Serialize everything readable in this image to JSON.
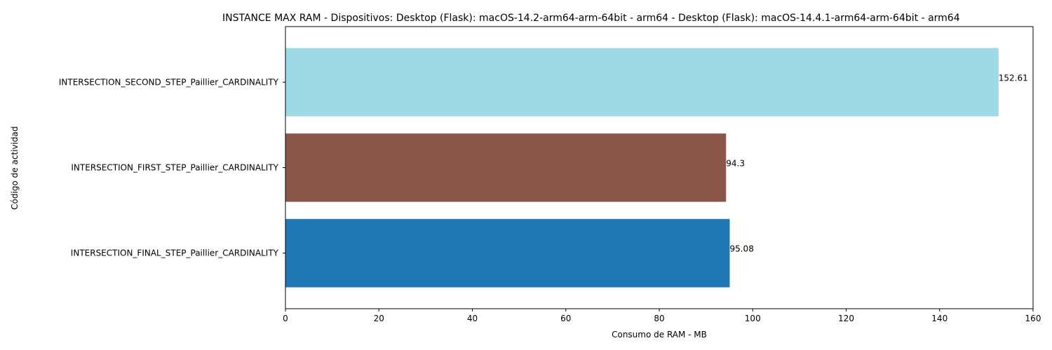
{
  "chart_data": {
    "type": "bar",
    "orientation": "horizontal",
    "title": "INSTANCE MAX RAM - Dispositivos: Desktop (Flask): macOS-14.2-arm64-arm-64bit - arm64 - Desktop (Flask): macOS-14.4.1-arm64-arm-64bit - arm64",
    "xlabel": "Consumo de RAM - MB",
    "ylabel": "Código de actividad",
    "xlim": [
      0,
      160
    ],
    "xticks": [
      "0",
      "20",
      "40",
      "60",
      "80",
      "100",
      "120",
      "140",
      "160"
    ],
    "xtick_values": [
      0,
      20,
      40,
      60,
      80,
      100,
      120,
      140,
      160
    ],
    "grid": false,
    "categories": [
      "INTERSECTION_FINAL_STEP_Paillier_CARDINALITY",
      "INTERSECTION_FIRST_STEP_Paillier_CARDINALITY",
      "INTERSECTION_SECOND_STEP_Paillier_CARDINALITY"
    ],
    "values": [
      95.08,
      94.3,
      152.61
    ],
    "value_labels": [
      "95.08",
      "94.3",
      "152.61"
    ],
    "colors": [
      "#1f77b4",
      "#8c564b",
      "#9edae5"
    ]
  }
}
